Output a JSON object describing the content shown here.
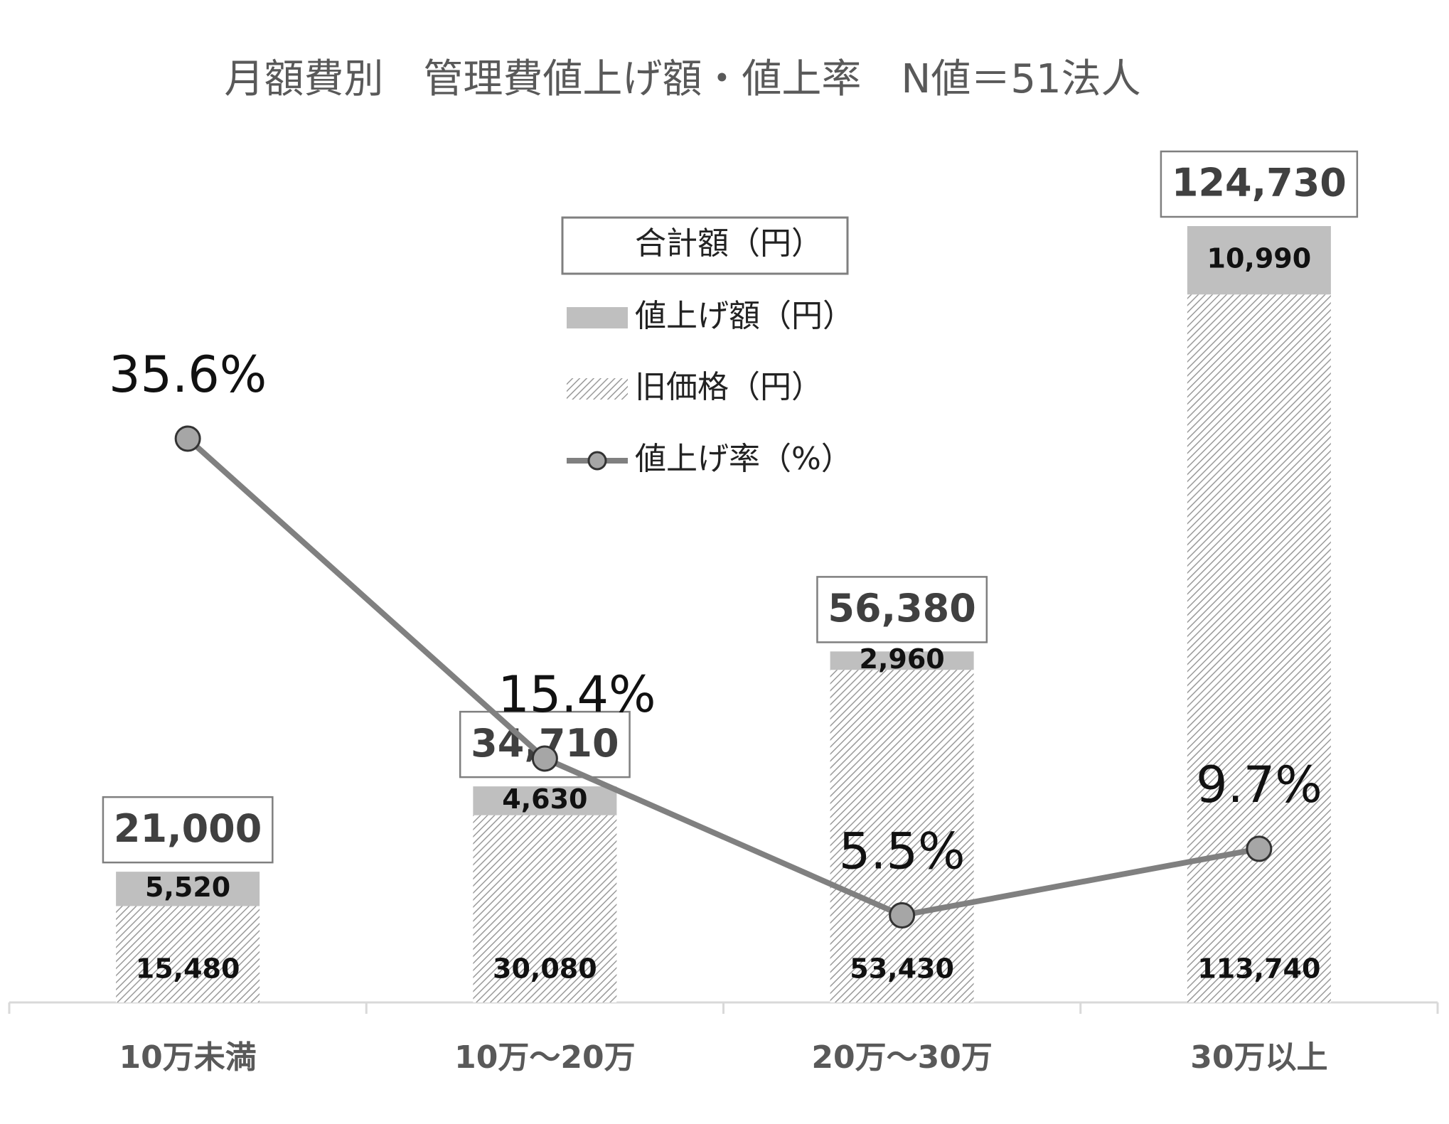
{
  "chart_data": {
    "type": "bar",
    "title": "月額費別　管理費値上げ額・値上率　N値＝51法人",
    "categories": [
      "10万未満",
      "10万～20万",
      "20万～30万",
      "30万以上"
    ],
    "series": [
      {
        "name": "旧価格（円）",
        "color": "#9a9a9a",
        "values": [
          15480,
          30080,
          53430,
          113740
        ],
        "value_labels": [
          "15,480",
          "30,080",
          "53,430",
          "113,740"
        ]
      },
      {
        "name": "値上げ額（円）",
        "color": "#bfbfbf",
        "values": [
          5520,
          4630,
          2960,
          10990
        ],
        "value_labels": [
          "5,520",
          "4,630",
          "2,960",
          "10,990"
        ]
      },
      {
        "name": "合計額（円）",
        "color": "#7f7f7f",
        "values": [
          21000,
          34710,
          56380,
          124730
        ],
        "value_labels": [
          "21,000",
          "34,710",
          "56,380",
          "124,730"
        ]
      },
      {
        "name": "値上げ率（%）",
        "color": "#808080",
        "values": [
          35.6,
          15.4,
          5.5,
          9.7
        ],
        "value_labels": [
          "35.6%",
          "15.4%",
          "5.5%",
          "9.7%"
        ],
        "axis": "y2"
      }
    ]
  }
}
